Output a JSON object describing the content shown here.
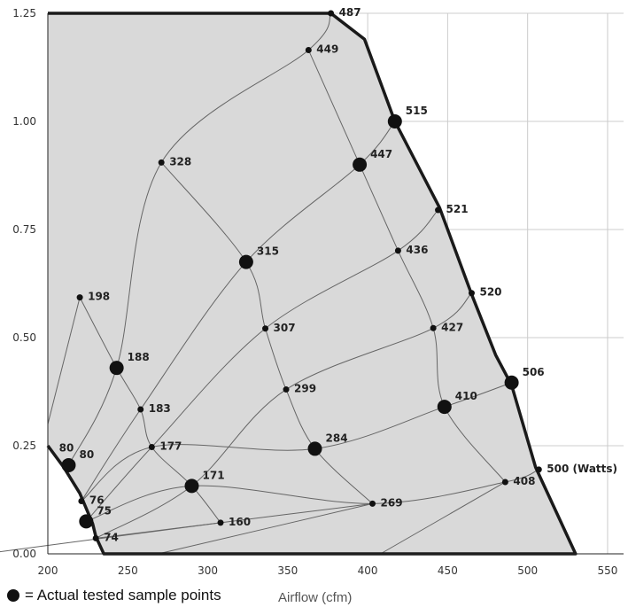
{
  "chart_data": {
    "type": "scatter",
    "x_ticks": [
      "200",
      "250",
      "300",
      "350",
      "400",
      "450",
      "500",
      "550"
    ],
    "y_ticks": [
      "0.00",
      "0.25",
      "0.50",
      "0.75",
      "1.00",
      "1.25"
    ],
    "xlim": [
      200,
      560
    ],
    "ylim": [
      0,
      1.25
    ],
    "xlabel": "Airflow (cfm)",
    "ylabel": "",
    "grid": true,
    "colors": {
      "region": "#d9d9d9",
      "curves": "#666666",
      "boundary": "#1a1a1a",
      "grid": "#cccccc"
    },
    "boundary_outline": [
      [
        200,
        1.25
      ],
      [
        377,
        1.25
      ],
      [
        398,
        1.19
      ],
      [
        417,
        1.0
      ],
      [
        445,
        0.8
      ],
      [
        465,
        0.6
      ],
      [
        480,
        0.46
      ],
      [
        490,
        0.39
      ],
      [
        505,
        0.2
      ],
      [
        530,
        0.0
      ],
      [
        235,
        0.0
      ],
      [
        230,
        0.04
      ],
      [
        228,
        0.07
      ],
      [
        220,
        0.14
      ],
      [
        210,
        0.2
      ],
      [
        200,
        0.25
      ]
    ],
    "points": [
      {
        "label": "487",
        "x": 377,
        "y": 1.25,
        "tested": false
      },
      {
        "label": "449",
        "x": 363,
        "y": 1.165,
        "tested": false
      },
      {
        "label": "515",
        "x": 417,
        "y": 1.0,
        "tested": true
      },
      {
        "label": "447",
        "x": 395,
        "y": 0.9,
        "tested": true
      },
      {
        "label": "328",
        "x": 271,
        "y": 0.905,
        "tested": false
      },
      {
        "label": "521",
        "x": 444,
        "y": 0.795,
        "tested": false
      },
      {
        "label": "436",
        "x": 419,
        "y": 0.701,
        "tested": false
      },
      {
        "label": "315",
        "x": 324,
        "y": 0.675,
        "tested": true
      },
      {
        "label": "198",
        "x": 220,
        "y": 0.593,
        "tested": false
      },
      {
        "label": "520",
        "x": 465,
        "y": 0.603,
        "tested": false
      },
      {
        "label": "307",
        "x": 336,
        "y": 0.521,
        "tested": false
      },
      {
        "label": "427",
        "x": 441,
        "y": 0.522,
        "tested": false
      },
      {
        "label": "188",
        "x": 243,
        "y": 0.43,
        "tested": true
      },
      {
        "label": "506",
        "x": 490,
        "y": 0.396,
        "tested": true
      },
      {
        "label": "299",
        "x": 349,
        "y": 0.38,
        "tested": false
      },
      {
        "label": "183",
        "x": 258,
        "y": 0.334,
        "tested": false
      },
      {
        "label": "410",
        "x": 448,
        "y": 0.34,
        "tested": true
      },
      {
        "label": "177",
        "x": 265,
        "y": 0.247,
        "tested": false
      },
      {
        "label": "284",
        "x": 367,
        "y": 0.243,
        "tested": true
      },
      {
        "label": "80",
        "x": 213,
        "y": 0.205,
        "tested": true
      },
      {
        "label": "500 (Watts)",
        "x": 507,
        "y": 0.195,
        "tested": false
      },
      {
        "label": "171",
        "x": 290,
        "y": 0.157,
        "tested": true
      },
      {
        "label": "408",
        "x": 486,
        "y": 0.166,
        "tested": false
      },
      {
        "label": "76",
        "x": 221,
        "y": 0.122,
        "tested": false
      },
      {
        "label": "269",
        "x": 403,
        "y": 0.116,
        "tested": false
      },
      {
        "label": "75",
        "x": 224,
        "y": 0.075,
        "tested": true
      },
      {
        "label": "74",
        "x": 230,
        "y": 0.036,
        "tested": false
      },
      {
        "label": "160",
        "x": 308,
        "y": 0.072,
        "tested": false
      }
    ],
    "extra_labels": [
      {
        "text": "80",
        "x": 207,
        "y": 0.237
      }
    ],
    "curves": [
      [
        "449",
        "447",
        "436",
        "427",
        "410",
        "408"
      ],
      [
        "328",
        "315",
        "307",
        "299",
        "284",
        "269"
      ],
      [
        "198",
        "188",
        "183",
        "177",
        "171",
        "160"
      ],
      [
        "76",
        "177",
        "284",
        "410",
        "506"
      ],
      [
        "75",
        "171",
        "269",
        "408",
        "500 (Watts)"
      ],
      [
        "74",
        "160",
        "269"
      ],
      [
        "80",
        "188",
        "328",
        "449",
        "487"
      ],
      [
        "76",
        "183",
        "315",
        "447",
        "515"
      ],
      [
        "75",
        "177",
        "307",
        "436",
        "521"
      ],
      [
        "74",
        "171",
        "299",
        "427",
        "520"
      ]
    ],
    "curve_tails": [
      [
        [
          200,
          0.3
        ],
        [
          220,
          0.593
        ]
      ],
      [
        [
          160,
          0.0
        ],
        [
          308,
          0.072
        ]
      ],
      [
        [
          269,
          0.0
        ],
        [
          403,
          0.116
        ]
      ],
      [
        [
          408,
          0.0
        ],
        [
          486,
          0.166
        ]
      ]
    ]
  },
  "legend": {
    "marker": "large-filled-circle",
    "text": "= Actual tested sample points"
  }
}
